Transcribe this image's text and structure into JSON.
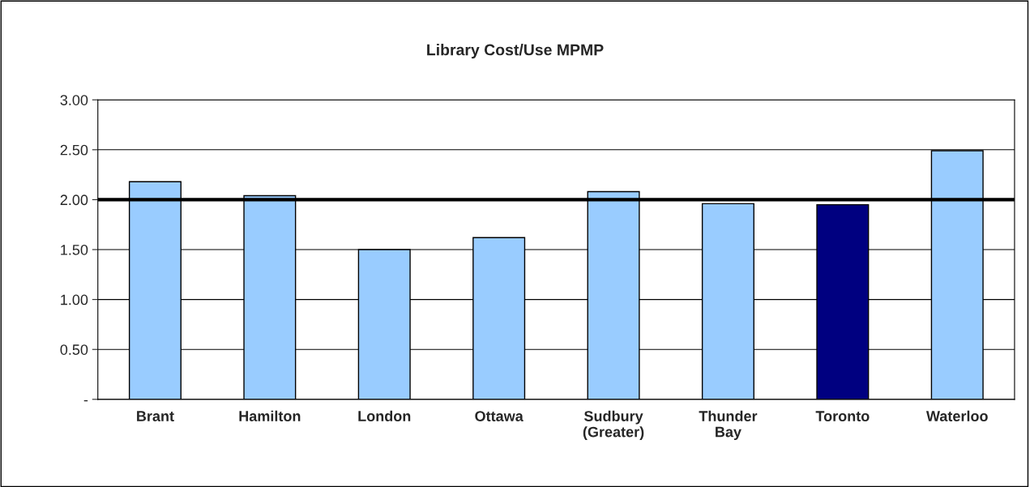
{
  "chart_data": {
    "type": "bar",
    "title": "Library Cost/Use MPMP",
    "categories": [
      "Brant",
      "Hamilton",
      "London",
      "Ottawa",
      "Sudbury\n(Greater)",
      "Thunder\nBay",
      "Toronto",
      "Waterloo"
    ],
    "values": [
      2.18,
      2.04,
      1.5,
      1.62,
      2.08,
      1.96,
      1.95,
      2.49
    ],
    "colors": [
      "#99ccff",
      "#99ccff",
      "#99ccff",
      "#99ccff",
      "#99ccff",
      "#99ccff",
      "#000080",
      "#99ccff"
    ],
    "ylim": [
      0,
      3
    ],
    "yticks": [
      {
        "value": 0,
        "label": "-"
      },
      {
        "value": 0.5,
        "label": "0.50"
      },
      {
        "value": 1,
        "label": "1.00"
      },
      {
        "value": 1.5,
        "label": "1.50"
      },
      {
        "value": 2,
        "label": "2.00"
      },
      {
        "value": 2.5,
        "label": "2.50"
      },
      {
        "value": 3,
        "label": "3.00"
      }
    ],
    "ref_lines": [
      {
        "axis": "y",
        "value": 2,
        "color": "#000000"
      }
    ],
    "grid": "y"
  }
}
